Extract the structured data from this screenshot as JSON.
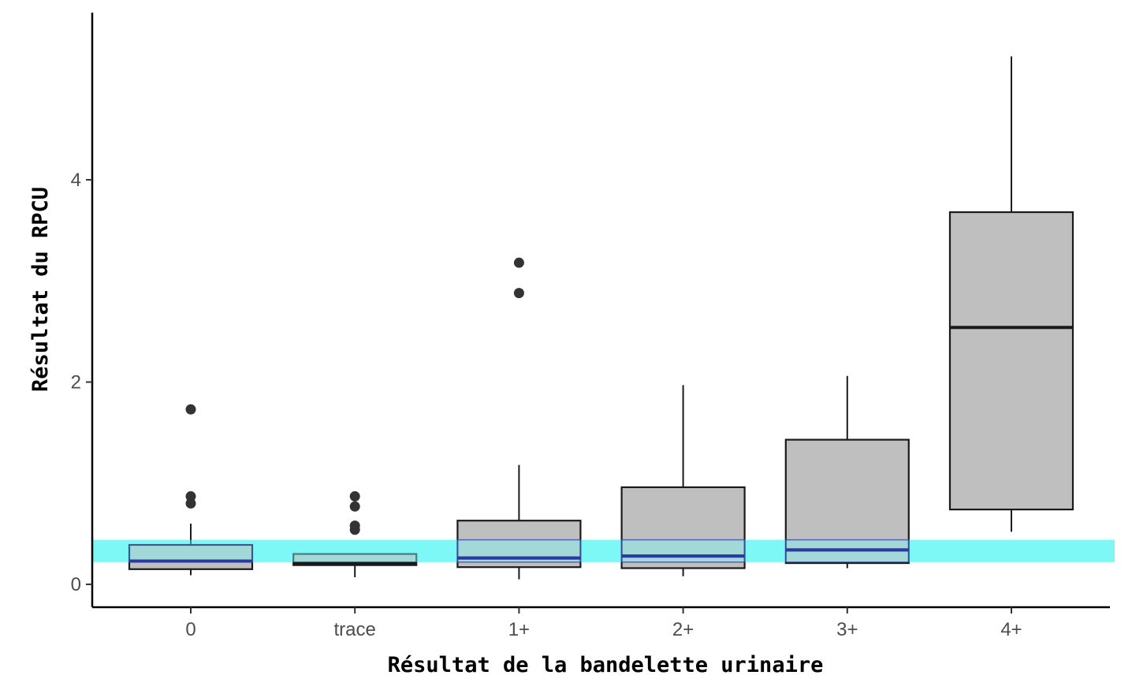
{
  "chart_data": {
    "type": "box",
    "xlabel": "Résultat de la bandelette urinaire",
    "ylabel": "Résultat du RPCU",
    "categories": [
      "0",
      "trace",
      "1+",
      "2+",
      "3+",
      "4+"
    ],
    "ylim": [
      -0.22,
      5.7
    ],
    "yticks": [
      0,
      2,
      4
    ],
    "grid": false,
    "boxes": [
      {
        "category": "0",
        "whisker_low": 0.09,
        "q1": 0.15,
        "median": 0.23,
        "q3": 0.39,
        "whisker_high": 0.6,
        "outliers": [
          0.8,
          0.87,
          1.73
        ]
      },
      {
        "category": "trace",
        "whisker_low": 0.07,
        "q1": 0.19,
        "median": 0.21,
        "q3": 0.3,
        "whisker_high": 0.3,
        "outliers": [
          0.54,
          0.58,
          0.77,
          0.87
        ]
      },
      {
        "category": "1+",
        "whisker_low": 0.05,
        "q1": 0.17,
        "median": 0.26,
        "q3": 0.63,
        "whisker_high": 1.18,
        "outliers": [
          2.88,
          3.18
        ]
      },
      {
        "category": "2+",
        "whisker_low": 0.08,
        "q1": 0.16,
        "median": 0.28,
        "q3": 0.96,
        "whisker_high": 1.97,
        "outliers": []
      },
      {
        "category": "3+",
        "whisker_low": 0.16,
        "q1": 0.21,
        "median": 0.34,
        "q3": 1.43,
        "whisker_high": 2.06,
        "outliers": []
      },
      {
        "category": "4+",
        "whisker_low": 0.52,
        "q1": 0.74,
        "median": 2.54,
        "q3": 3.68,
        "whisker_high": 5.22,
        "outliers": []
      }
    ],
    "reference_band": {
      "y_low": 0.22,
      "y_high": 0.44,
      "color": "#7ff7f7"
    },
    "colors": {
      "box_fill": "#bfbfbf",
      "box_stroke": "#1a1a1a",
      "median_in_band": "#2b3aa0",
      "outlier": "#333333"
    }
  }
}
